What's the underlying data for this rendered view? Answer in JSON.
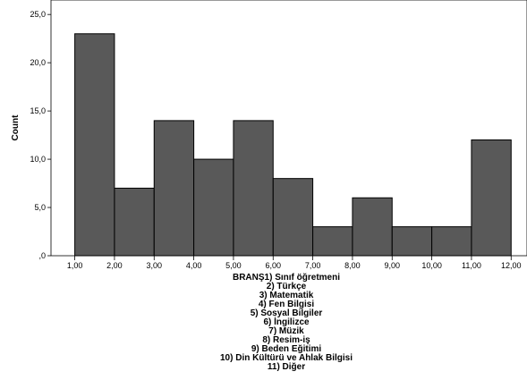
{
  "chart_data": {
    "type": "histogram",
    "ylabel": "Count",
    "xlabel_lines": [
      "BRANŞ1) Sınıf öğretmeni",
      "2) Türkçe",
      "3) Matematik",
      "4) Fen Bilgisi",
      "5) Sosyal Bilgiler",
      "6) İngilizce",
      "7) Müzik",
      "8) Resim-iş",
      "9) Beden Eğitimi",
      "10) Din Kültürü ve Ahlak Bilgisi",
      "11) Diğer"
    ],
    "bins": [
      {
        "start": 1,
        "end": 2,
        "count": 23
      },
      {
        "start": 2,
        "end": 3,
        "count": 7
      },
      {
        "start": 3,
        "end": 4,
        "count": 14
      },
      {
        "start": 4,
        "end": 5,
        "count": 10
      },
      {
        "start": 5,
        "end": 6,
        "count": 14
      },
      {
        "start": 6,
        "end": 7,
        "count": 8
      },
      {
        "start": 7,
        "end": 8,
        "count": 3
      },
      {
        "start": 8,
        "end": 9,
        "count": 6
      },
      {
        "start": 9,
        "end": 10,
        "count": 3
      },
      {
        "start": 10,
        "end": 11,
        "count": 3
      },
      {
        "start": 11,
        "end": 12,
        "count": 12
      }
    ],
    "x_ticks": [
      "1,00",
      "2,00",
      "3,00",
      "4,00",
      "5,00",
      "6,00",
      "7,00",
      "8,00",
      "9,00",
      "10,00",
      "11,00",
      "12,00"
    ],
    "x_tick_values": [
      1,
      2,
      3,
      4,
      5,
      6,
      7,
      8,
      9,
      10,
      11,
      12
    ],
    "y_ticks": [
      ",0",
      "5,0",
      "10,0",
      "15,0",
      "20,0",
      "25,0"
    ],
    "y_tick_values": [
      0,
      5,
      10,
      15,
      20,
      25
    ],
    "xlim": [
      0.4,
      12.4
    ],
    "ylim": [
      0,
      26.5
    ],
    "grid": false,
    "colors": {
      "bar_fill": "#595959",
      "bar_stroke": "#000000"
    }
  }
}
